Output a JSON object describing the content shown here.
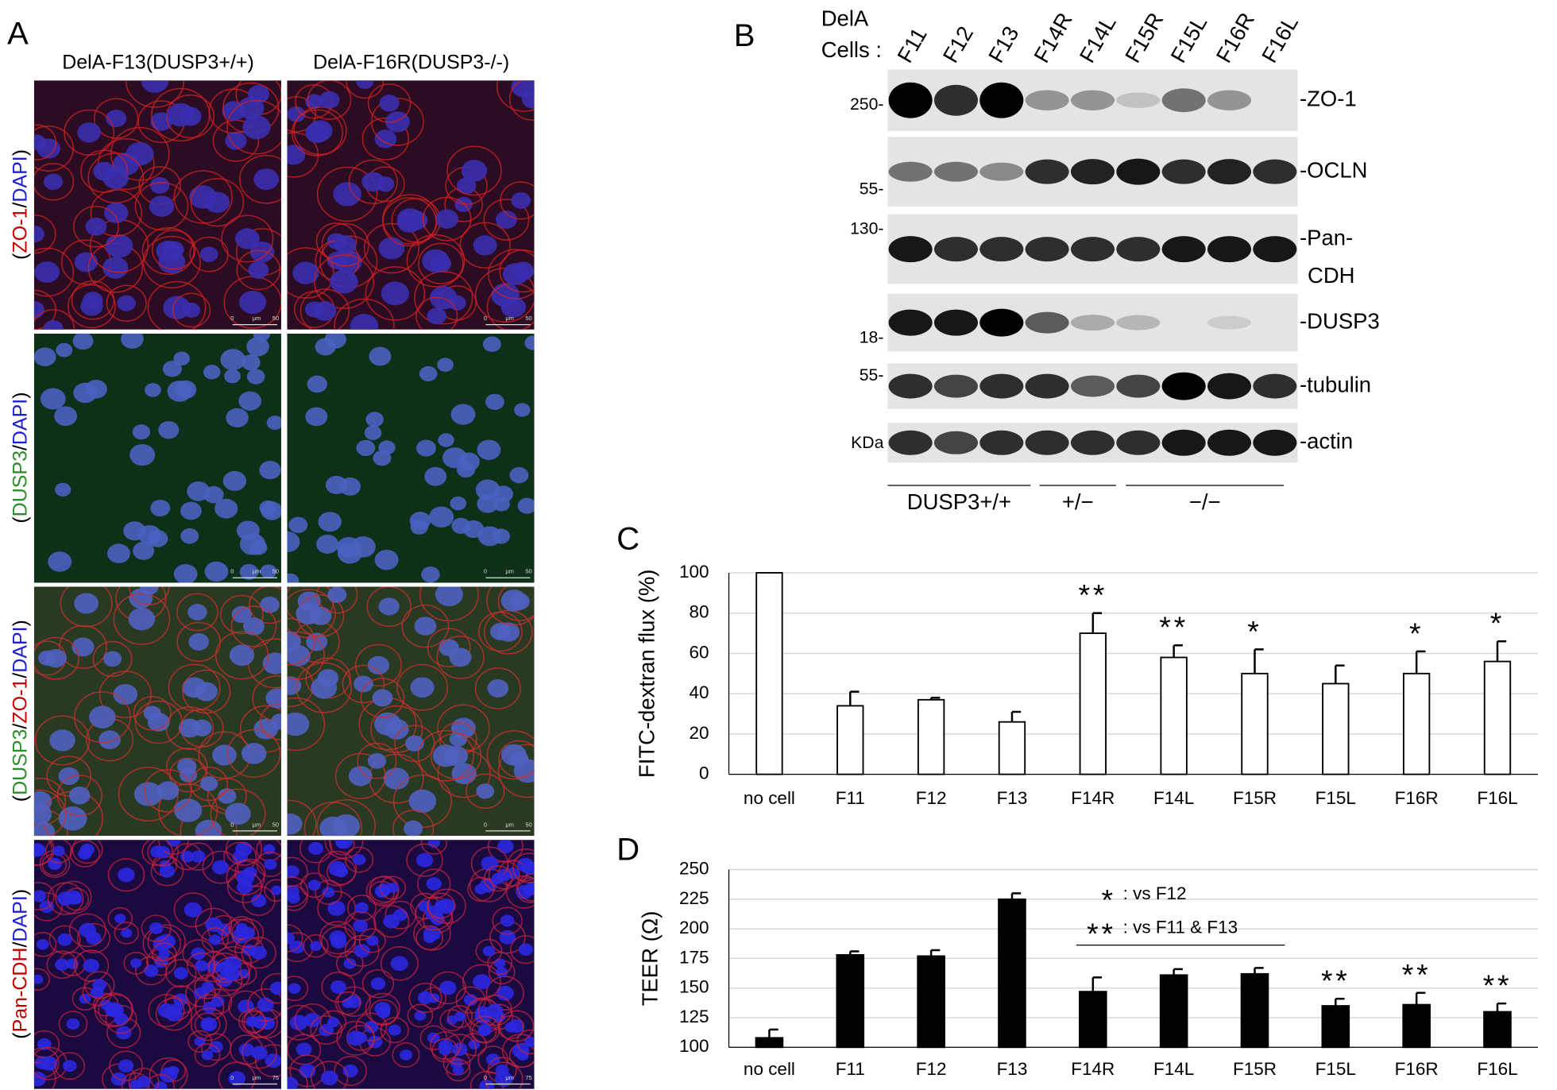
{
  "panel_a": {
    "letter": "A",
    "columns": [
      "DelA-F13(DUSP3+/+)",
      "DelA-F16R(DUSP3-/-)"
    ],
    "rows": [
      {
        "parts": [
          {
            "text": "(",
            "color": "#000000"
          },
          {
            "text": "ZO-1",
            "color": "#c00000"
          },
          {
            "text": "/",
            "color": "#000000"
          },
          {
            "text": "DAPI",
            "color": "#1f1fd0"
          },
          {
            "text": ")",
            "color": "#000000"
          }
        ],
        "scale": "50"
      },
      {
        "parts": [
          {
            "text": "(",
            "color": "#000000"
          },
          {
            "text": "DUSP3",
            "color": "#2e8b2e"
          },
          {
            "text": "/",
            "color": "#000000"
          },
          {
            "text": "DAPI",
            "color": "#1f1fd0"
          },
          {
            "text": ")",
            "color": "#000000"
          }
        ],
        "scale": "50"
      },
      {
        "parts": [
          {
            "text": "(",
            "color": "#000000"
          },
          {
            "text": "DUSP3",
            "color": "#2e8b2e"
          },
          {
            "text": "/",
            "color": "#000000"
          },
          {
            "text": "ZO-1",
            "color": "#c00000"
          },
          {
            "text": "/",
            "color": "#000000"
          },
          {
            "text": "DAPI",
            "color": "#1f1fd0"
          },
          {
            "text": ")",
            "color": "#000000"
          }
        ],
        "scale": "50"
      },
      {
        "parts": [
          {
            "text": "(",
            "color": "#000000"
          },
          {
            "text": "Pan-CDH",
            "color": "#c00000"
          },
          {
            "text": "/",
            "color": "#000000"
          },
          {
            "text": "DAPI",
            "color": "#1f1fd0"
          },
          {
            "text": ")",
            "color": "#000000"
          }
        ],
        "scale": "75"
      }
    ],
    "scale_zero": "0",
    "scale_unit": "μm"
  },
  "panel_b": {
    "letter": "B",
    "header": [
      "DelA",
      "Cells :"
    ],
    "lanes": [
      "F11",
      "F12",
      "F13",
      "F14R",
      "F14L",
      "F15R",
      "F15L",
      "F16R",
      "F16L"
    ],
    "blots": [
      {
        "label": "-ZO-1"
      },
      {
        "label": "-OCLN"
      },
      {
        "label": "-Pan-",
        "label2": "CDH"
      },
      {
        "label": "-DUSP3"
      },
      {
        "label": "-tubulin"
      },
      {
        "label": "-actin"
      }
    ],
    "markers": [
      "250-",
      "55-",
      "130-",
      "18-",
      "55-",
      "KDa"
    ],
    "groups": [
      "DUSP3+/+",
      "+/−",
      "−/−"
    ]
  },
  "chart_data": [
    {
      "type": "bar",
      "letter": "C",
      "ylabel": "FITC-dextran flux (%)",
      "categories": [
        "no cell",
        "F11",
        "F12",
        "F13",
        "F14R",
        "F14L",
        "F15R",
        "F15L",
        "F16R",
        "F16L"
      ],
      "values": [
        100,
        34,
        37,
        26,
        70,
        58,
        50,
        45,
        50,
        56
      ],
      "errors": [
        null,
        7,
        1,
        5,
        10,
        6,
        12,
        9,
        11,
        10
      ],
      "significance": [
        null,
        null,
        null,
        null,
        "**",
        "**",
        "*",
        null,
        "*",
        "*"
      ],
      "color": "#ffffff",
      "ylim": [
        0,
        100
      ],
      "yticks": [
        0,
        20,
        40,
        60,
        80,
        100
      ],
      "grid": true
    },
    {
      "type": "bar",
      "letter": "D",
      "ylabel": "TEER (Ω)",
      "categories": [
        "no cell",
        "F11",
        "F12",
        "F13",
        "F14R",
        "F14L",
        "F15R",
        "F15L",
        "F16R",
        "F16L"
      ],
      "values": [
        108,
        178,
        177,
        225,
        147,
        161,
        162,
        135,
        136,
        130
      ],
      "errors": [
        7,
        3,
        5,
        5,
        12,
        5,
        5,
        6,
        10,
        7
      ],
      "significance": [
        null,
        null,
        null,
        null,
        null,
        null,
        null,
        "**",
        "**",
        "**"
      ],
      "notes": [
        {
          "symbol": "*",
          "text": ": vs F12"
        },
        {
          "symbol": "**",
          "text": ": vs F11 & F13"
        }
      ],
      "color": "#000000",
      "ylim": [
        100,
        250
      ],
      "yticks": [
        100,
        125,
        150,
        175,
        200,
        225,
        250
      ],
      "grid": true
    }
  ]
}
